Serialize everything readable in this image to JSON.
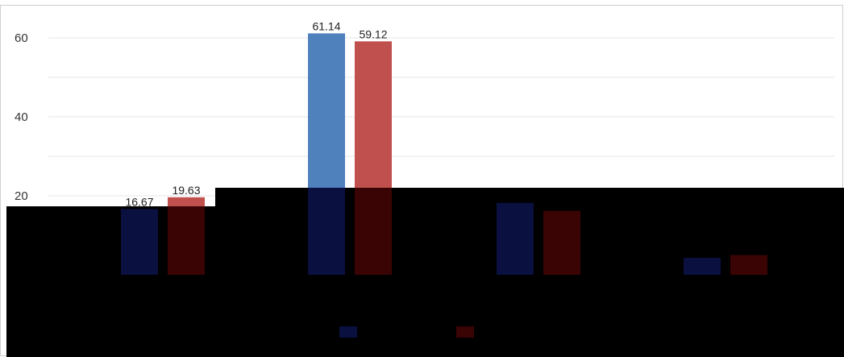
{
  "chart_data": {
    "type": "bar",
    "categories": [
      "",
      "",
      "",
      ""
    ],
    "ylim": [
      0,
      65
    ],
    "yticks": [
      20,
      40,
      60
    ],
    "grid": true,
    "legend": "bottom",
    "series": [
      {
        "color": "#4f81bd",
        "values": [
          16.67,
          61.14,
          18.2,
          4.3
        ],
        "labels": [
          "16.67",
          "61.14",
          "",
          ""
        ]
      },
      {
        "color": "#c0504d",
        "values": [
          19.63,
          59.12,
          16.2,
          5.0
        ],
        "labels": [
          "19.63",
          "59.12",
          "",
          ""
        ]
      }
    ],
    "title": "",
    "xlabel": "",
    "ylabel": ""
  }
}
